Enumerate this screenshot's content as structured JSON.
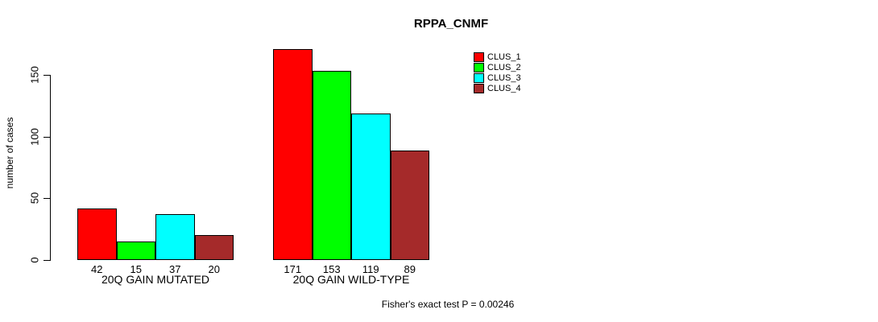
{
  "page": {
    "background": "#ffffff"
  },
  "chart_data": {
    "type": "bar",
    "title": "RPPA_CNMF",
    "xlabel": "",
    "ylabel": "number of cases",
    "ylim": [
      0,
      150
    ],
    "yticks": [
      0,
      50,
      100,
      150
    ],
    "grid": false,
    "categories": [
      "20Q GAIN MUTATED",
      "20Q GAIN WILD-TYPE"
    ],
    "series": [
      {
        "name": "CLUS_1",
        "color": "#ff0000",
        "values": [
          42,
          171
        ]
      },
      {
        "name": "CLUS_2",
        "color": "#00ff00",
        "values": [
          15,
          153
        ]
      },
      {
        "name": "CLUS_3",
        "color": "#00ffff",
        "values": [
          37,
          119
        ]
      },
      {
        "name": "CLUS_4",
        "color": "#a52a2a",
        "values": [
          20,
          89
        ]
      }
    ],
    "bar_value_labels": [
      [
        42,
        15,
        37,
        20
      ],
      [
        171,
        153,
        119,
        89
      ]
    ],
    "legend": {
      "position": "top-right",
      "entries": [
        "CLUS_1",
        "CLUS_2",
        "CLUS_3",
        "CLUS_4"
      ]
    },
    "annotation": "Fisher's exact test P = 0.00246"
  }
}
